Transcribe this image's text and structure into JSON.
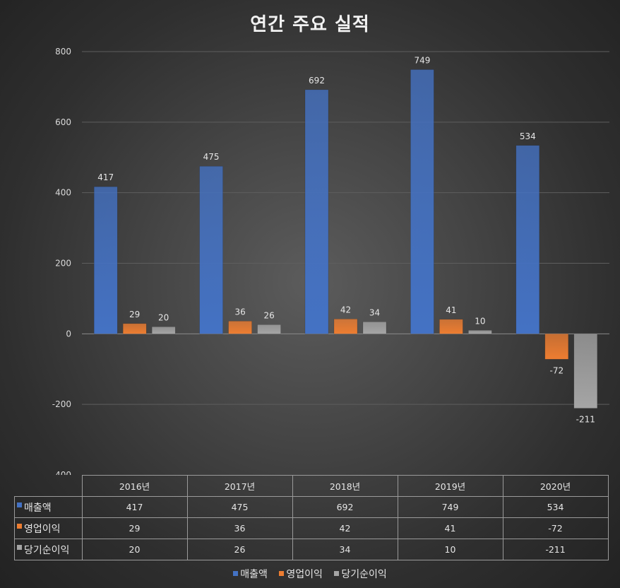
{
  "chart_data": {
    "type": "bar",
    "title": "연간 주요 실적",
    "categories": [
      "2016년",
      "2017년",
      "2018년",
      "2019년",
      "2020년"
    ],
    "series": [
      {
        "name": "매출액",
        "values": [
          417,
          475,
          692,
          749,
          534
        ],
        "color": "#4472c4"
      },
      {
        "name": "영업이익",
        "values": [
          29,
          36,
          42,
          41,
          -72
        ],
        "color": "#ed7d31"
      },
      {
        "name": "당기순이익",
        "values": [
          20,
          26,
          34,
          10,
          -211
        ],
        "color": "#a5a5a5"
      }
    ],
    "ylim": [
      -400,
      800
    ],
    "yticks": [
      "-400",
      "-200",
      "0",
      "200",
      "400",
      "600",
      "800"
    ],
    "grid": true,
    "legend": "bottom",
    "data_table": true
  }
}
